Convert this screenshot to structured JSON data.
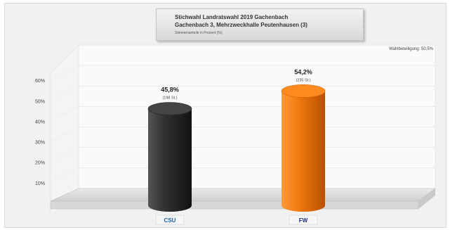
{
  "title": {
    "line1": "Stichwahl Landratswahl 2019 Gachenbach",
    "line2": "Gachenbach 3, Mehrzweckhalle Peutenhausen (3)",
    "line3": "Stimmenanteile in Prozent (%)"
  },
  "turnout_label": "Wahlbeteiligung: 50,5%",
  "chart_data": {
    "type": "bar",
    "categories": [
      "CSU",
      "FW"
    ],
    "values": [
      45.8,
      54.2
    ],
    "data_labels": [
      "45,8%",
      "54,2%"
    ],
    "vote_labels": [
      "(198 St.)",
      "(235 St.)"
    ],
    "bar_colors": [
      "#2b2b2b",
      "#e86a00"
    ],
    "ylim": [
      0,
      70
    ],
    "yticks": [
      "10%",
      "20%",
      "30%",
      "40%",
      "50%",
      "60%"
    ],
    "ytick_values": [
      10,
      20,
      30,
      40,
      50,
      60
    ],
    "grid": true,
    "category_logos": [
      "CSU",
      "FW"
    ]
  }
}
